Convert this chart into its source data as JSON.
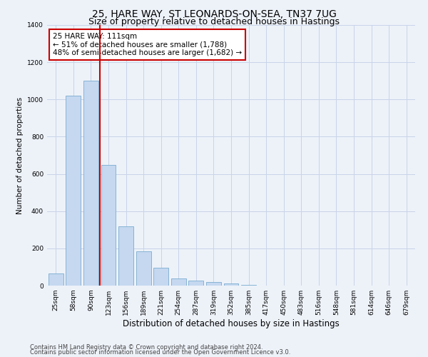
{
  "title": "25, HARE WAY, ST LEONARDS-ON-SEA, TN37 7UG",
  "subtitle": "Size of property relative to detached houses in Hastings",
  "xlabel": "Distribution of detached houses by size in Hastings",
  "ylabel": "Number of detached properties",
  "categories": [
    "25sqm",
    "58sqm",
    "90sqm",
    "123sqm",
    "156sqm",
    "189sqm",
    "221sqm",
    "254sqm",
    "287sqm",
    "319sqm",
    "352sqm",
    "385sqm",
    "417sqm",
    "450sqm",
    "483sqm",
    "516sqm",
    "548sqm",
    "581sqm",
    "614sqm",
    "646sqm",
    "679sqm"
  ],
  "values": [
    65,
    1020,
    1100,
    650,
    320,
    185,
    95,
    40,
    25,
    18,
    12,
    5,
    0,
    0,
    0,
    0,
    0,
    0,
    0,
    0,
    0
  ],
  "bar_color": "#c5d8f0",
  "bar_edge_color": "#7aabcf",
  "vline_color": "#cc0000",
  "annotation_text": "25 HARE WAY: 111sqm\n← 51% of detached houses are smaller (1,788)\n48% of semi-detached houses are larger (1,682) →",
  "annotation_box_facecolor": "#ffffff",
  "annotation_box_edgecolor": "#cc0000",
  "ylim": [
    0,
    1400
  ],
  "yticks": [
    0,
    200,
    400,
    600,
    800,
    1000,
    1200,
    1400
  ],
  "grid_color": "#c8d4e8",
  "background_color": "#edf2f9",
  "plot_bg_color": "#edf2f9",
  "footer_line1": "Contains HM Land Registry data © Crown copyright and database right 2024.",
  "footer_line2": "Contains public sector information licensed under the Open Government Licence v3.0.",
  "title_fontsize": 10,
  "subtitle_fontsize": 9,
  "xlabel_fontsize": 8.5,
  "ylabel_fontsize": 7.5,
  "tick_fontsize": 6.5,
  "annotation_fontsize": 7.5,
  "footer_fontsize": 6
}
